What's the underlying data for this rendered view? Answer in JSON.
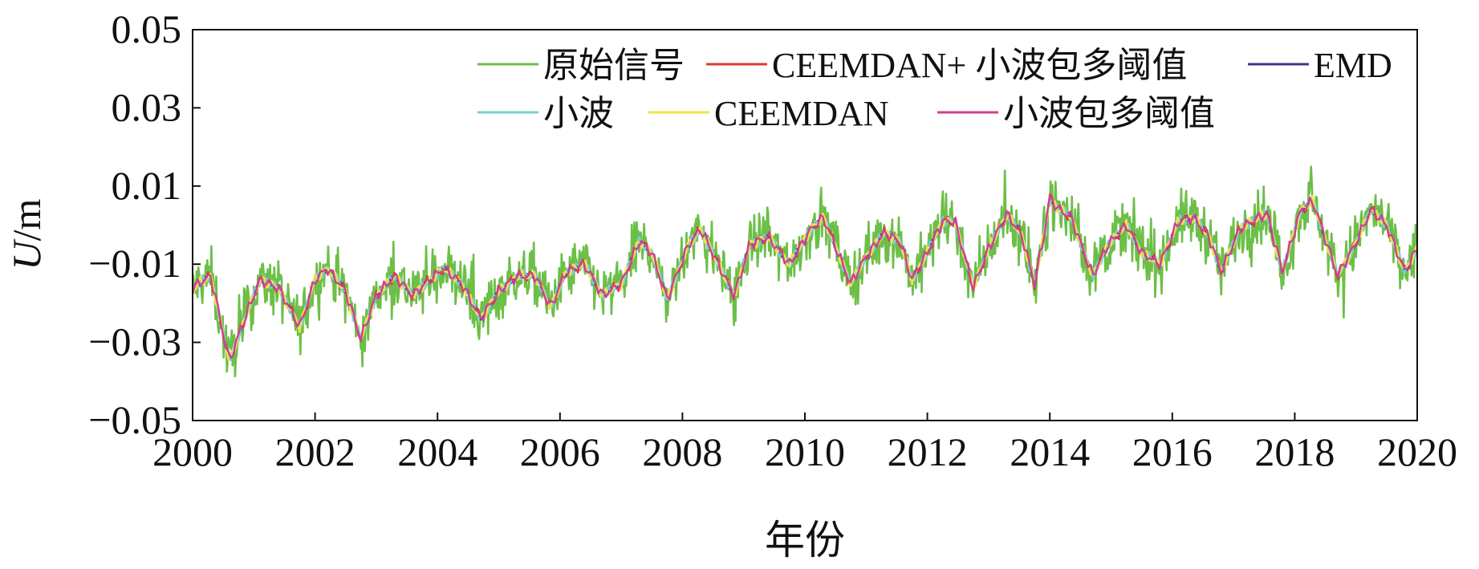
{
  "chart_data": {
    "type": "line",
    "xlabel": "年份",
    "ylabel": "U/m",
    "ylabel_italic_part": "U",
    "ylabel_unit_part": "/m",
    "xlim": [
      2000,
      2020
    ],
    "ylim": [
      -0.05,
      0.05
    ],
    "x_ticks": [
      2000,
      2002,
      2004,
      2006,
      2008,
      2010,
      2012,
      2014,
      2016,
      2018,
      2020
    ],
    "x_tick_labels": [
      "2000",
      "2002",
      "2004",
      "2006",
      "2008",
      "2010",
      "2012",
      "2014",
      "2016",
      "2018",
      "2020"
    ],
    "y_ticks": [
      0.05,
      0.03,
      0.01,
      -0.01,
      -0.03,
      -0.05
    ],
    "y_tick_labels": [
      "0.05",
      "0.03",
      "0.01",
      "−0.01",
      "−0.03",
      "−0.05"
    ],
    "grid": false,
    "legend_position": "top-right",
    "legend_rows": [
      [
        "原始信号",
        "CEEMDAN+ 小波包多阈值",
        "EMD"
      ],
      [
        "小波",
        "CEEMDAN",
        "小波包多阈值"
      ]
    ],
    "series": [
      {
        "name": "原始信号",
        "color": "#6cbf47",
        "kind": "raw"
      },
      {
        "name": "CEEMDAN+ 小波包多阈值",
        "color": "#e03a2e",
        "kind": "smooth"
      },
      {
        "name": "EMD",
        "color": "#3b3a8c",
        "kind": "smooth"
      },
      {
        "name": "小波",
        "color": "#77cfd0",
        "kind": "smooth"
      },
      {
        "name": "CEEMDAN",
        "color": "#f2e24a",
        "kind": "smooth"
      },
      {
        "name": "小波包多阈值",
        "color": "#d03f94",
        "kind": "smooth"
      }
    ],
    "trend_points": [
      [
        2000.0,
        -0.016
      ],
      [
        2000.3,
        -0.013
      ],
      [
        2000.6,
        -0.035
      ],
      [
        2000.8,
        -0.026
      ],
      [
        2001.1,
        -0.014
      ],
      [
        2001.4,
        -0.016
      ],
      [
        2001.75,
        -0.026
      ],
      [
        2002.0,
        -0.014
      ],
      [
        2002.2,
        -0.011
      ],
      [
        2002.5,
        -0.017
      ],
      [
        2002.75,
        -0.029
      ],
      [
        2003.0,
        -0.018
      ],
      [
        2003.3,
        -0.013
      ],
      [
        2003.6,
        -0.018
      ],
      [
        2003.8,
        -0.015
      ],
      [
        2004.1,
        -0.011
      ],
      [
        2004.4,
        -0.015
      ],
      [
        2004.7,
        -0.024
      ],
      [
        2005.0,
        -0.017
      ],
      [
        2005.3,
        -0.013
      ],
      [
        2005.6,
        -0.013
      ],
      [
        2005.85,
        -0.021
      ],
      [
        2006.1,
        -0.012
      ],
      [
        2006.4,
        -0.01
      ],
      [
        2006.7,
        -0.018
      ],
      [
        2007.0,
        -0.015
      ],
      [
        2007.3,
        -0.004
      ],
      [
        2007.5,
        -0.007
      ],
      [
        2007.75,
        -0.019
      ],
      [
        2008.1,
        -0.005
      ],
      [
        2008.3,
        -0.001
      ],
      [
        2008.65,
        -0.012
      ],
      [
        2008.85,
        -0.018
      ],
      [
        2009.1,
        -0.005
      ],
      [
        2009.4,
        -0.003
      ],
      [
        2009.75,
        -0.01
      ],
      [
        2010.1,
        -0.001
      ],
      [
        2010.3,
        0.002
      ],
      [
        2010.75,
        -0.015
      ],
      [
        2011.0,
        -0.008
      ],
      [
        2011.3,
        -0.002
      ],
      [
        2011.55,
        -0.004
      ],
      [
        2011.75,
        -0.014
      ],
      [
        2012.0,
        -0.007
      ],
      [
        2012.25,
        0.001
      ],
      [
        2012.45,
        0.001
      ],
      [
        2012.75,
        -0.016
      ],
      [
        2013.0,
        -0.006
      ],
      [
        2013.3,
        0.003
      ],
      [
        2013.55,
        -0.003
      ],
      [
        2013.75,
        -0.015
      ],
      [
        2013.9,
        -0.003
      ],
      [
        2014.0,
        0.007
      ],
      [
        2014.15,
        0.004
      ],
      [
        2014.35,
        0.002
      ],
      [
        2014.7,
        -0.013
      ],
      [
        2014.95,
        -0.005
      ],
      [
        2015.25,
        0.0
      ],
      [
        2015.5,
        -0.007
      ],
      [
        2015.8,
        -0.01
      ],
      [
        2016.1,
        0.001
      ],
      [
        2016.35,
        0.002
      ],
      [
        2016.6,
        -0.003
      ],
      [
        2016.8,
        -0.012
      ],
      [
        2017.1,
        -0.001
      ],
      [
        2017.3,
        0.001
      ],
      [
        2017.55,
        0.003
      ],
      [
        2017.8,
        -0.012
      ],
      [
        2018.1,
        0.004
      ],
      [
        2018.3,
        0.006
      ],
      [
        2018.7,
        -0.013
      ],
      [
        2018.95,
        -0.006
      ],
      [
        2019.25,
        0.004
      ],
      [
        2019.5,
        0.0
      ],
      [
        2019.8,
        -0.012
      ],
      [
        2020.0,
        -0.006
      ]
    ]
  }
}
